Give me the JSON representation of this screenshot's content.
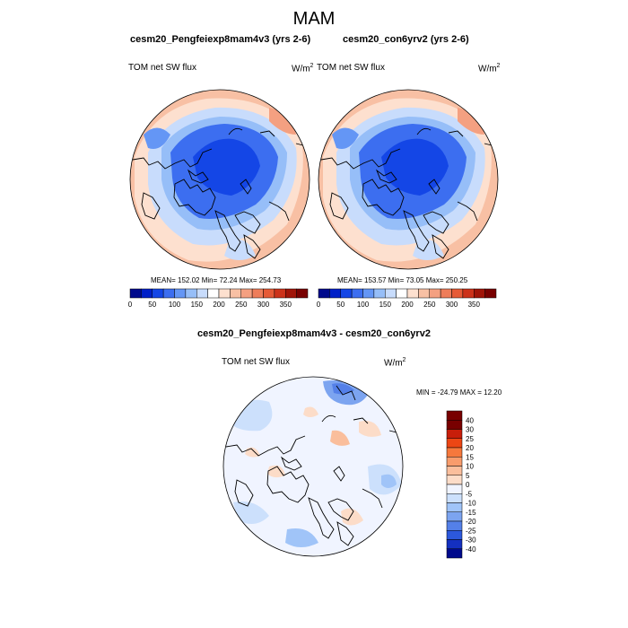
{
  "main_title": "MAM",
  "panels": [
    {
      "name": "cesm20_Pengfeiexp8mam4v3 (yrs 2-6)",
      "variable": "TOM net SW flux",
      "units_base": "W/m",
      "units_exp": "2",
      "stats": "MEAN= 152.02  Min=  72.24  Max= 254.73",
      "colorbar_labels": [
        "0",
        "50",
        "100",
        "150",
        "200",
        "250",
        "300",
        "350"
      ]
    },
    {
      "name": "cesm20_con6yrv2 (yrs 2-6)",
      "variable": "TOM net SW flux",
      "units_base": "W/m",
      "units_exp": "2",
      "stats": "MEAN= 153.57  Min=  73.05  Max= 250.25",
      "colorbar_labels": [
        "0",
        "50",
        "100",
        "150",
        "200",
        "250",
        "300",
        "350"
      ]
    }
  ],
  "diff_panel": {
    "name": "cesm20_Pengfeiexp8mam4v3 - cesm20_con6yrv2",
    "variable": "TOM net SW flux",
    "units_base": "W/m",
    "units_exp": "2",
    "stats": "MIN = -24.79 MAX =  12.20",
    "colorbar_labels": [
      "40",
      "30",
      "25",
      "20",
      "15",
      "10",
      "5",
      "0",
      "-5",
      "-10",
      "-15",
      "-20",
      "-25",
      "-30",
      "-40"
    ]
  },
  "colors": {
    "abs_scale": [
      "#000a8c",
      "#0020c8",
      "#1446e6",
      "#3c6ef0",
      "#6496f5",
      "#96bef8",
      "#c8dcfc",
      "#ffffff",
      "#fde0cf",
      "#f8c0a4",
      "#f4a081",
      "#ee7d5a",
      "#e65a36",
      "#cc321a",
      "#a01408",
      "#780000"
    ],
    "diff_scale": [
      "#780000",
      "#c81e0a",
      "#ec4614",
      "#f6783c",
      "#f89c6c",
      "#fabe9c",
      "#fcdcc8",
      "#f0f4ff",
      "#cce0fc",
      "#a0c4f8",
      "#7ca4f0",
      "#5480e8",
      "#2c58dc",
      "#1430c0",
      "#000a8c"
    ]
  }
}
